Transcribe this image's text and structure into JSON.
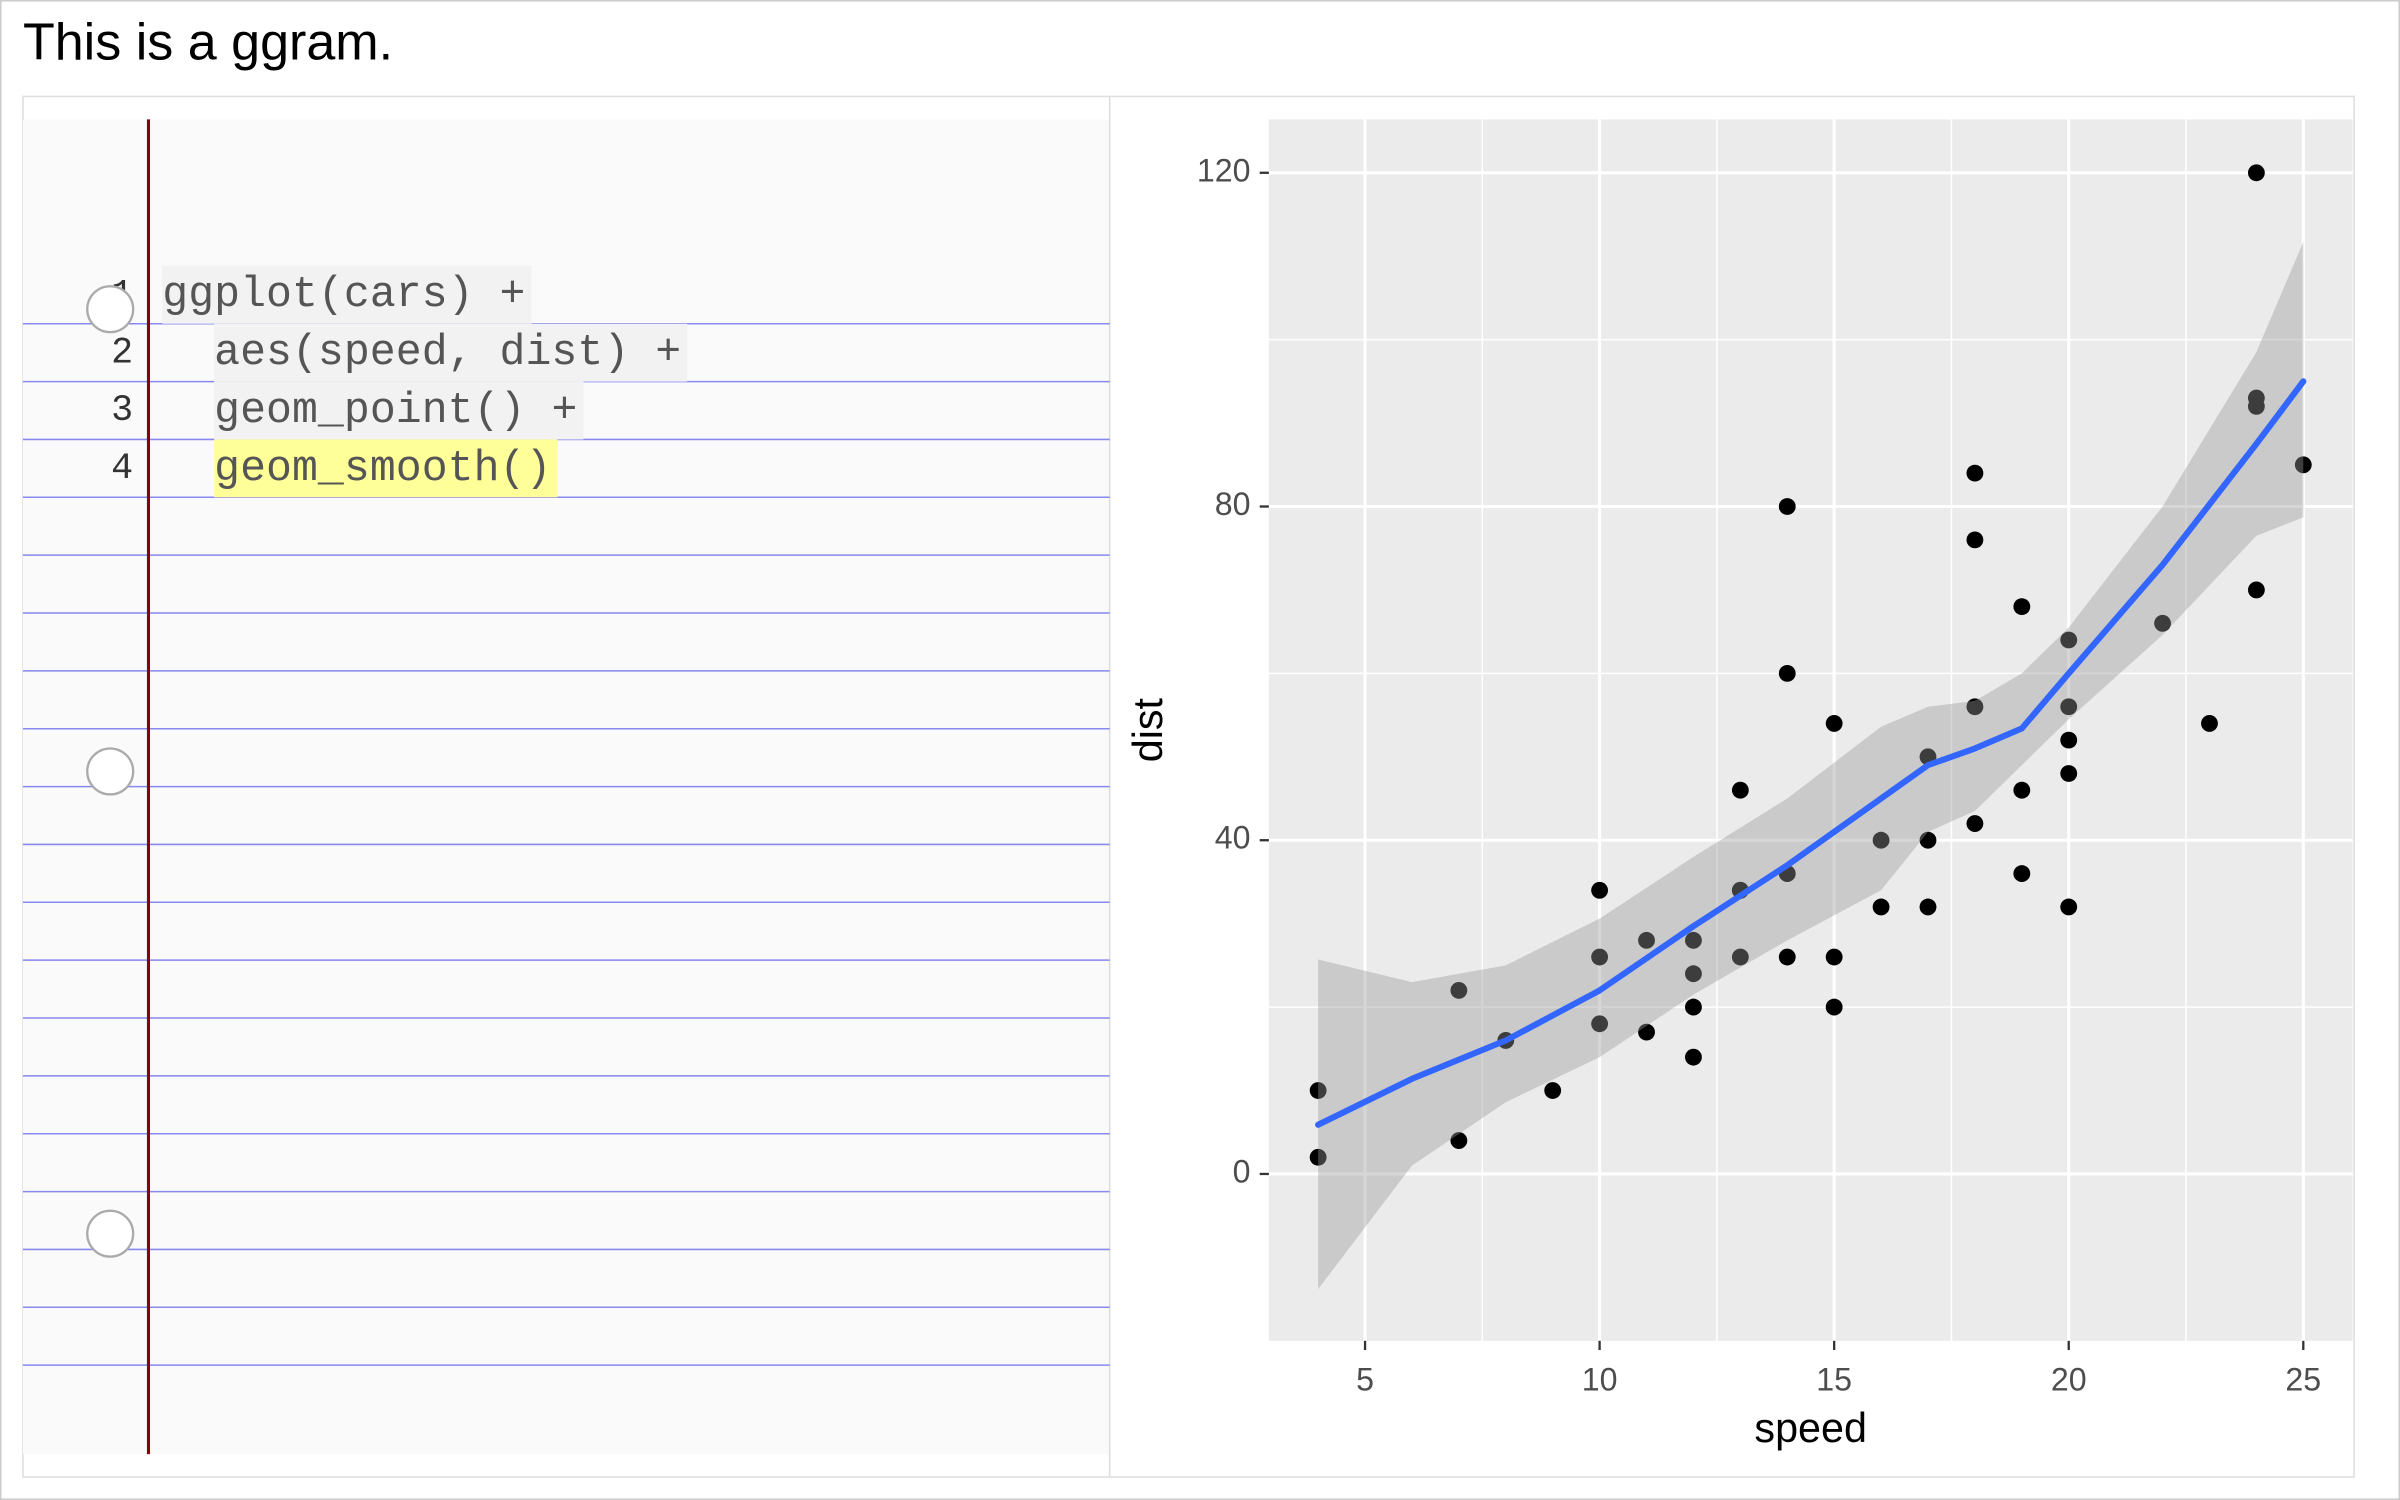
{
  "title": "This is a ggram.",
  "editor": {
    "lines": [
      {
        "number": 1,
        "code": "ggplot(cars) +",
        "highlight": false
      },
      {
        "number": 2,
        "code": "  aes(speed, dist) +",
        "highlight": false
      },
      {
        "number": 3,
        "code": "  geom_point() +",
        "highlight": false
      },
      {
        "number": 4,
        "code": "  geom_smooth()",
        "highlight": true
      }
    ]
  },
  "chart_data": {
    "type": "scatter",
    "x_label": "speed",
    "y_label": "dist",
    "x": [
      4,
      4,
      7,
      7,
      8,
      9,
      10,
      10,
      10,
      11,
      11,
      12,
      12,
      12,
      12,
      13,
      13,
      13,
      13,
      14,
      14,
      14,
      14,
      15,
      15,
      15,
      16,
      16,
      17,
      17,
      17,
      18,
      18,
      18,
      18,
      19,
      19,
      19,
      20,
      20,
      20,
      20,
      20,
      22,
      23,
      24,
      24,
      24,
      24,
      25
    ],
    "values": [
      2,
      10,
      4,
      22,
      16,
      10,
      18,
      26,
      34,
      17,
      28,
      14,
      20,
      24,
      28,
      26,
      34,
      34,
      46,
      26,
      36,
      60,
      80,
      20,
      26,
      54,
      32,
      40,
      32,
      40,
      50,
      42,
      56,
      76,
      84,
      36,
      46,
      68,
      32,
      48,
      52,
      56,
      64,
      66,
      54,
      70,
      92,
      93,
      120,
      85
    ],
    "color": "#000000",
    "smooth": {
      "x": [
        4,
        6,
        8,
        10,
        12,
        14,
        16,
        17,
        18,
        19,
        20,
        22,
        24,
        25
      ],
      "values": [
        5.9,
        11.4,
        16,
        22,
        29.7,
        37,
        45,
        49,
        51,
        53.4,
        60,
        73,
        87.5,
        95
      ],
      "lower": [
        -13.8,
        1,
        8.6,
        14,
        21.5,
        28,
        34,
        41,
        43.5,
        49,
        54.5,
        64.6,
        76.5,
        78.7
      ],
      "upper": [
        25.7,
        23,
        25,
        30.6,
        38,
        45,
        53.6,
        56,
        56.7,
        60,
        65.5,
        80,
        98.5,
        111.7
      ],
      "color": "#3366ff",
      "band_color": "#999999"
    },
    "xlim": [
      2.95,
      26.05
    ],
    "ylim": [
      -20,
      126.4
    ],
    "xticks": [
      5,
      10,
      15,
      20,
      25
    ],
    "yticks": [
      0,
      40,
      80,
      120
    ],
    "x_minor_ticks": [
      7.5,
      12.5,
      17.5,
      22.5
    ],
    "y_minor_ticks": [
      20,
      60,
      100
    ],
    "grid": true
  }
}
